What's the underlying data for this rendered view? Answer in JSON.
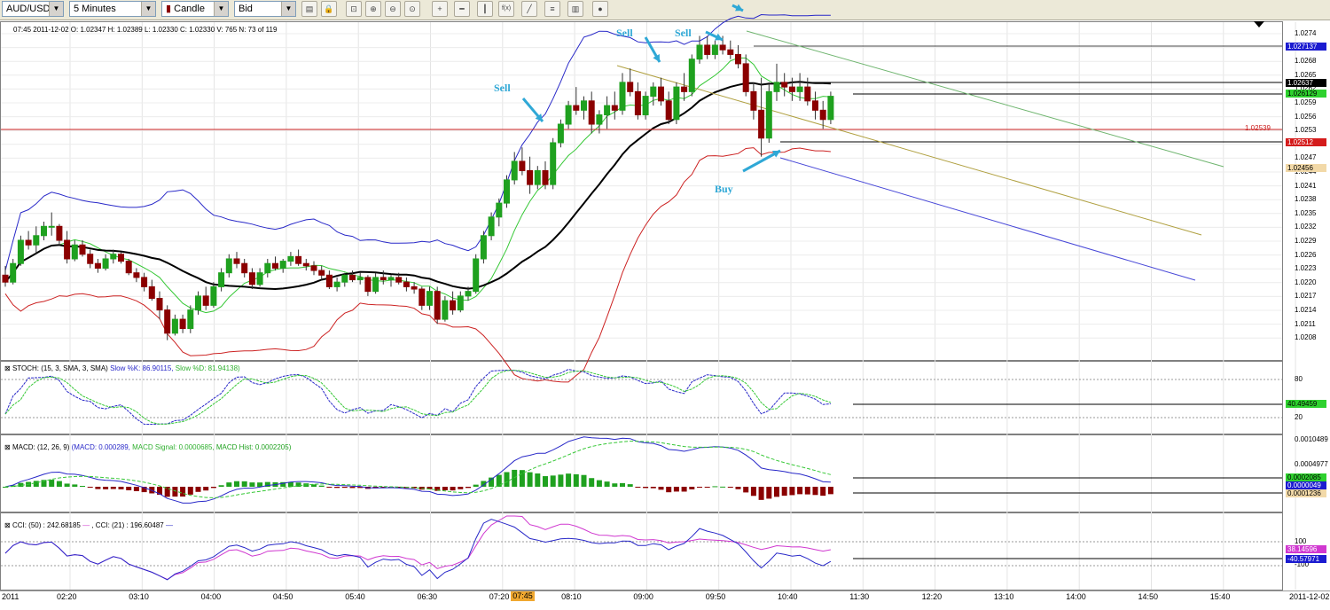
{
  "toolbar": {
    "symbol": "AUD/USD",
    "timeframe": "5 Minutes",
    "chart_type": "Candle",
    "price_type": "Bid",
    "tools": [
      "chart-settings-icon",
      "lock-icon",
      "zoom-fit-icon",
      "zoom-in-icon",
      "zoom-out-icon",
      "zoom-reset-icon",
      "crosshair-icon",
      "horizontal-line-icon",
      "vertical-line-icon",
      "indicator-icon",
      "trendline-icon",
      "fibonacci-icon",
      "print-icon",
      "circle-icon"
    ],
    "tool_labels": {
      "indicator": "f(x)"
    }
  },
  "main": {
    "info": "07:45 2011-12-02   O: 1.02347   H: 1.02389   L: 1.02330   C: 1.02330   V: 765   N: 73 of 119",
    "annotations": {
      "sell1": "Sell",
      "sell2": "Sell",
      "sell3": "Sell",
      "buy": "Buy"
    },
    "hline_label": "1.02539",
    "scale": [
      "1.0274",
      "1.0271",
      "1.0268",
      "1.0265",
      "1.0262",
      "1.0259",
      "1.0256",
      "1.0253",
      "1.0250",
      "1.0247",
      "1.0244",
      "1.0241",
      "1.0238",
      "1.0235",
      "1.0232",
      "1.0229",
      "1.0226",
      "1.0223",
      "1.0220",
      "1.0217",
      "1.0214",
      "1.0211",
      "1.0208"
    ],
    "tags": {
      "upper": "1.027137",
      "close": "1.02637",
      "green": "1.026129",
      "red": "1.02512",
      "lower": "1.02456"
    }
  },
  "stoch": {
    "name": "STOCH: (15, 3, SMA, 3, SMA)",
    "k": "Slow %K: 86.90115,",
    "d": "Slow %D: 81.94138)",
    "scale": [
      "80",
      "20"
    ],
    "tag": "40.49459"
  },
  "macd": {
    "name": "MACD: (12, 26, 9)",
    "macd": "(MACD: 0.000289,",
    "signal": "MACD Signal: 0.0000685,",
    "hist": "MACD Hist: 0.0002205)",
    "scale": [
      "0.0010489",
      "0.0004977"
    ],
    "tags": [
      "0.0002085",
      "0.0000049",
      "0.0001236"
    ]
  },
  "cci": {
    "name": "CCI: (50) : 242.68185",
    "name2": ", CCI: (21) : 196.60487",
    "scale": [
      "100",
      "-100"
    ],
    "tags": [
      "38.14596",
      "-40.57971"
    ]
  },
  "xaxis": {
    "left_date": "2011",
    "labels": [
      "02:20",
      "03:10",
      "04:00",
      "04:50",
      "05:40",
      "06:30",
      "07:20",
      "08:10",
      "09:00",
      "09:50",
      "10:40",
      "11:30",
      "12:20",
      "13:10",
      "14:00",
      "14:50",
      "15:40"
    ],
    "cursor": "07:45",
    "right_date": "2011-12-02"
  },
  "colors": {
    "bull": "#1fa11f",
    "bear": "#8b0000",
    "upper_band": "#2828c8",
    "lower_band": "#cc2222",
    "ma_fast": "#36c836",
    "ma_slow": "#000000",
    "annotation": "#2fa8d6"
  },
  "chart_data": {
    "type": "candlestick",
    "y_range": [
      1.0205,
      1.0276
    ],
    "candles": [
      [
        1.02225,
        1.02245,
        1.022,
        1.0221
      ],
      [
        1.0221,
        1.0226,
        1.02205,
        1.0225
      ],
      [
        1.0225,
        1.0231,
        1.02245,
        1.023
      ],
      [
        1.023,
        1.0232,
        1.0228,
        1.0229
      ],
      [
        1.0229,
        1.0233,
        1.0227,
        1.0231
      ],
      [
        1.0231,
        1.0234,
        1.023,
        1.0233
      ],
      [
        1.0233,
        1.0236,
        1.0231,
        1.0233
      ],
      [
        1.0233,
        1.02335,
        1.0229,
        1.023
      ],
      [
        1.023,
        1.0232,
        1.0225,
        1.0226
      ],
      [
        1.0226,
        1.023,
        1.02255,
        1.0229
      ],
      [
        1.0229,
        1.023,
        1.02265,
        1.0227
      ],
      [
        1.0227,
        1.0228,
        1.0224,
        1.0225
      ],
      [
        1.0225,
        1.0226,
        1.0223,
        1.0224
      ],
      [
        1.0224,
        1.0227,
        1.02235,
        1.0226
      ],
      [
        1.0226,
        1.0228,
        1.0225,
        1.0227
      ],
      [
        1.0227,
        1.02275,
        1.0225,
        1.02255
      ],
      [
        1.02255,
        1.0226,
        1.02225,
        1.0223
      ],
      [
        1.0223,
        1.0224,
        1.0221,
        1.0222
      ],
      [
        1.0222,
        1.0223,
        1.0219,
        1.022
      ],
      [
        1.022,
        1.02215,
        1.0217,
        1.02175
      ],
      [
        1.02175,
        1.0219,
        1.0213,
        1.0215
      ],
      [
        1.0215,
        1.0216,
        1.02085,
        1.021
      ],
      [
        1.021,
        1.0214,
        1.02095,
        1.0213
      ],
      [
        1.0213,
        1.0214,
        1.021,
        1.0211
      ],
      [
        1.0211,
        1.0216,
        1.021,
        1.0215
      ],
      [
        1.0215,
        1.0219,
        1.0214,
        1.0218
      ],
      [
        1.0218,
        1.022,
        1.0215,
        1.0216
      ],
      [
        1.0216,
        1.0221,
        1.02155,
        1.022
      ],
      [
        1.022,
        1.0224,
        1.0219,
        1.0223
      ],
      [
        1.0223,
        1.0227,
        1.0222,
        1.0226
      ],
      [
        1.0226,
        1.02275,
        1.0224,
        1.0225
      ],
      [
        1.0225,
        1.0226,
        1.0222,
        1.0223
      ],
      [
        1.0223,
        1.0224,
        1.02195,
        1.02205
      ],
      [
        1.02205,
        1.0224,
        1.022,
        1.0223
      ],
      [
        1.0223,
        1.0226,
        1.0222,
        1.0225
      ],
      [
        1.0225,
        1.02265,
        1.02235,
        1.0224
      ],
      [
        1.0224,
        1.0226,
        1.0223,
        1.02255
      ],
      [
        1.02255,
        1.02275,
        1.02245,
        1.02265
      ],
      [
        1.02265,
        1.0228,
        1.02245,
        1.0225
      ],
      [
        1.0225,
        1.0226,
        1.02235,
        1.02245
      ],
      [
        1.02245,
        1.02255,
        1.02225,
        1.02235
      ],
      [
        1.02235,
        1.02245,
        1.02215,
        1.02225
      ],
      [
        1.02225,
        1.02235,
        1.02195,
        1.022
      ],
      [
        1.022,
        1.0222,
        1.0219,
        1.0221
      ],
      [
        1.0221,
        1.0223,
        1.022,
        1.02225
      ],
      [
        1.02225,
        1.02235,
        1.0221,
        1.02215
      ],
      [
        1.02215,
        1.0223,
        1.02205,
        1.0222
      ],
      [
        1.0222,
        1.02225,
        1.0218,
        1.0219
      ],
      [
        1.0219,
        1.0223,
        1.02185,
        1.0222
      ],
      [
        1.0222,
        1.02235,
        1.02205,
        1.02215
      ],
      [
        1.02215,
        1.02225,
        1.022,
        1.0222
      ],
      [
        1.0222,
        1.0223,
        1.02205,
        1.0221
      ],
      [
        1.0221,
        1.0222,
        1.0219,
        1.022
      ],
      [
        1.022,
        1.0221,
        1.02185,
        1.02195
      ],
      [
        1.02195,
        1.022,
        1.0215,
        1.0216
      ],
      [
        1.0216,
        1.022,
        1.0215,
        1.0219
      ],
      [
        1.0219,
        1.022,
        1.0212,
        1.0213
      ],
      [
        1.0213,
        1.0218,
        1.02125,
        1.0217
      ],
      [
        1.0217,
        1.0219,
        1.0214,
        1.0215
      ],
      [
        1.0215,
        1.0219,
        1.02145,
        1.0218
      ],
      [
        1.0218,
        1.022,
        1.0217,
        1.0219
      ],
      [
        1.0219,
        1.0227,
        1.02185,
        1.0226
      ],
      [
        1.0226,
        1.0232,
        1.0225,
        1.0231
      ],
      [
        1.0231,
        1.0236,
        1.023,
        1.0235
      ],
      [
        1.0235,
        1.0239,
        1.0233,
        1.0238
      ],
      [
        1.0238,
        1.0244,
        1.0237,
        1.0243
      ],
      [
        1.0243,
        1.0249,
        1.0242,
        1.0247
      ],
      [
        1.0247,
        1.025,
        1.0244,
        1.0245
      ],
      [
        1.0245,
        1.0248,
        1.024,
        1.0242
      ],
      [
        1.0242,
        1.0246,
        1.0241,
        1.0245
      ],
      [
        1.0245,
        1.0247,
        1.0241,
        1.0242
      ],
      [
        1.0242,
        1.0252,
        1.0241,
        1.0251
      ],
      [
        1.0251,
        1.0256,
        1.025,
        1.0255
      ],
      [
        1.0255,
        1.026,
        1.0254,
        1.0259
      ],
      [
        1.0259,
        1.0263,
        1.0257,
        1.0258
      ],
      [
        1.0258,
        1.0261,
        1.0256,
        1.026
      ],
      [
        1.026,
        1.0262,
        1.0253,
        1.0255
      ],
      [
        1.0255,
        1.0258,
        1.0253,
        1.0257
      ],
      [
        1.0257,
        1.0261,
        1.0254,
        1.0259
      ],
      [
        1.0259,
        1.0262,
        1.0256,
        1.0258
      ],
      [
        1.0258,
        1.0266,
        1.0257,
        1.0264
      ],
      [
        1.0264,
        1.0267,
        1.0261,
        1.0262
      ],
      [
        1.0262,
        1.0264,
        1.0256,
        1.0257
      ],
      [
        1.0257,
        1.0262,
        1.0256,
        1.0261
      ],
      [
        1.0261,
        1.0264,
        1.0259,
        1.0263
      ],
      [
        1.0263,
        1.0265,
        1.0259,
        1.026
      ],
      [
        1.026,
        1.0262,
        1.0255,
        1.0256
      ],
      [
        1.0256,
        1.0264,
        1.0255,
        1.0263
      ],
      [
        1.0263,
        1.0266,
        1.026,
        1.0262
      ],
      [
        1.0262,
        1.027,
        1.0261,
        1.0269
      ],
      [
        1.0269,
        1.0274,
        1.0268,
        1.0272
      ],
      [
        1.0272,
        1.0274,
        1.0269,
        1.027
      ],
      [
        1.027,
        1.0273,
        1.0269,
        1.0272
      ],
      [
        1.0272,
        1.0274,
        1.027,
        1.0271
      ],
      [
        1.0271,
        1.0273,
        1.0269,
        1.027
      ],
      [
        1.027,
        1.0272,
        1.0267,
        1.0268
      ],
      [
        1.0268,
        1.027,
        1.0261,
        1.0262
      ],
      [
        1.0262,
        1.0264,
        1.0256,
        1.0258
      ],
      [
        1.0258,
        1.0265,
        1.0248,
        1.0252
      ],
      [
        1.0252,
        1.0264,
        1.0251,
        1.0262
      ],
      [
        1.0262,
        1.0268,
        1.026,
        1.0264
      ],
      [
        1.0264,
        1.0266,
        1.0261,
        1.0263
      ],
      [
        1.0263,
        1.0265,
        1.026,
        1.0262
      ],
      [
        1.0262,
        1.0266,
        1.026,
        1.0263
      ],
      [
        1.0263,
        1.0265,
        1.0259,
        1.026
      ],
      [
        1.026,
        1.0262,
        1.0256,
        1.0258
      ],
      [
        1.0258,
        1.026,
        1.0254,
        1.0256
      ],
      [
        1.0256,
        1.0262,
        1.0255,
        1.0261
      ]
    ]
  }
}
